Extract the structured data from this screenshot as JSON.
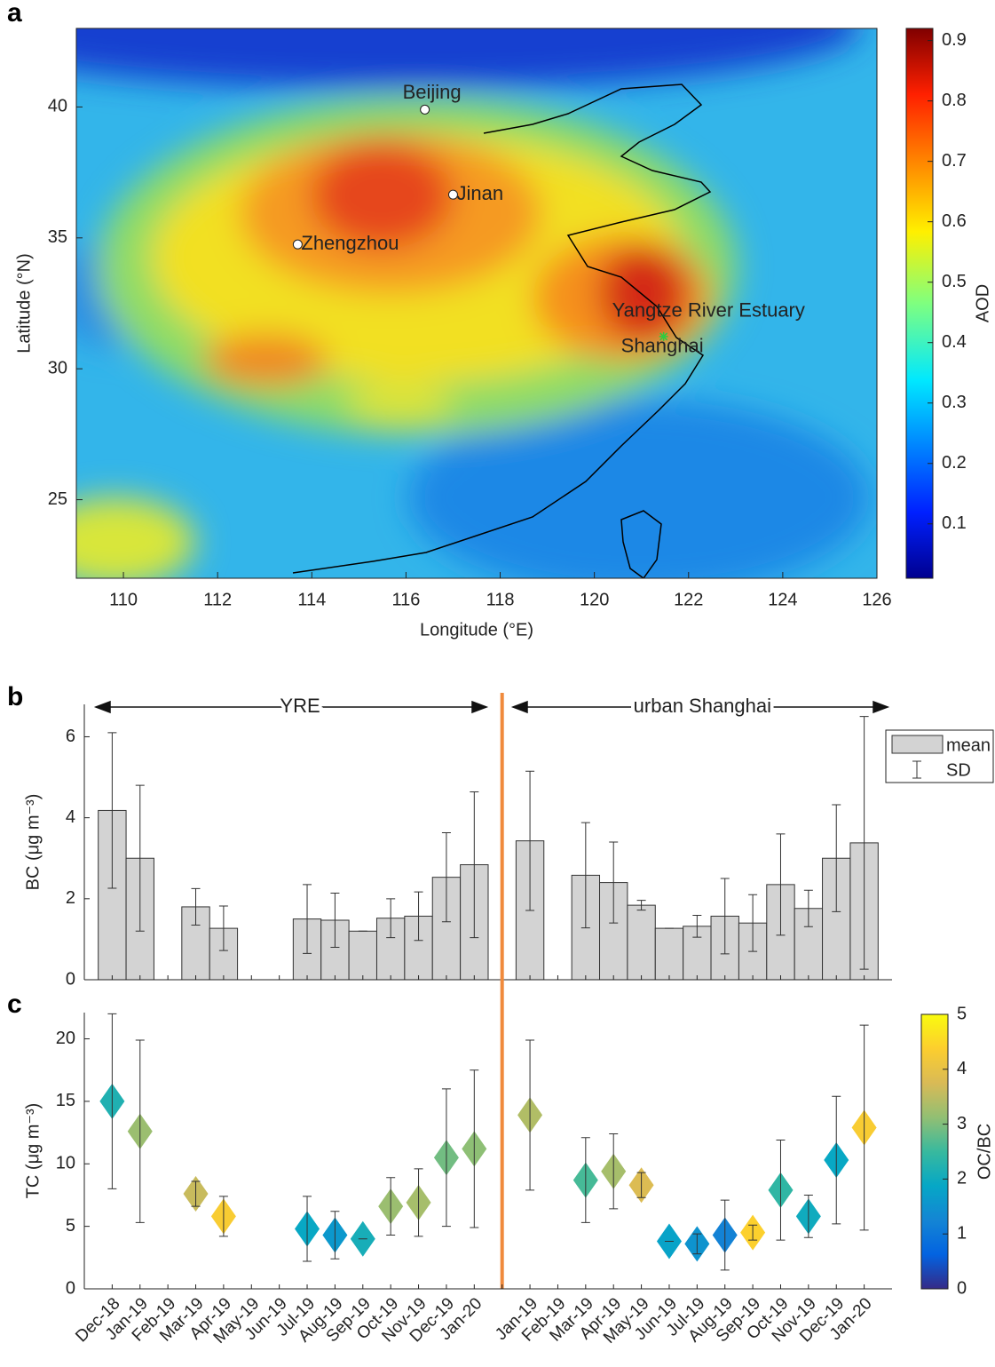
{
  "chart_data": [
    {
      "type": "map",
      "panel_label": "a",
      "xlabel": "Longitude (°E)",
      "ylabel": "Latitude (°N)",
      "xlim": [
        109,
        126
      ],
      "ylim": [
        22,
        43
      ],
      "xticks": [
        110,
        112,
        114,
        116,
        118,
        120,
        122,
        124,
        126
      ],
      "yticks": [
        25,
        30,
        35,
        40
      ],
      "points": [
        {
          "name": "Beijing",
          "x": 116.4,
          "y": 39.9
        },
        {
          "name": "Jinan",
          "x": 117.0,
          "y": 36.65
        },
        {
          "name": "Zhengzhou",
          "x": 113.7,
          "y": 34.75
        },
        {
          "name": "Shanghai",
          "x": 121.47,
          "y": 31.23
        }
      ],
      "annotations": [
        {
          "text": "Yangtze River Estuary"
        }
      ],
      "colorbar": {
        "label": "AOD",
        "lim": [
          0.01,
          0.92
        ],
        "ticks": [
          0.1,
          0.2,
          0.3,
          0.4,
          0.5,
          0.6,
          0.7,
          0.8,
          0.9
        ],
        "colormap": "jet"
      }
    },
    {
      "type": "bar",
      "panel_label": "b",
      "ylabel": "BC (μg m⁻³)",
      "ylim": [
        0,
        6.8
      ],
      "yticks": [
        0,
        2,
        4,
        6
      ],
      "series": [
        {
          "name": "mean",
          "color": "#d3d3d3",
          "values": [
            4.18,
            3.0,
            null,
            1.8,
            1.27,
            null,
            null,
            1.5,
            1.47,
            1.2,
            1.52,
            1.57,
            2.53,
            2.84,
            null,
            3.43,
            null,
            2.58,
            2.4,
            1.84,
            1.27,
            1.32,
            1.57,
            1.4,
            2.35,
            1.76,
            3.0,
            3.38
          ],
          "errors": [
            1.92,
            1.8,
            null,
            0.45,
            0.55,
            null,
            null,
            0.85,
            0.67,
            0,
            0.48,
            0.6,
            1.1,
            1.8,
            null,
            1.72,
            null,
            1.3,
            1.0,
            0.12,
            0,
            0.27,
            0.93,
            0.7,
            1.25,
            0.45,
            1.32,
            3.12
          ]
        }
      ],
      "error_name": "SD",
      "annotations": [
        {
          "text": "YRE"
        },
        {
          "text": "urban Shanghai"
        }
      ],
      "divider_color": "#f08a3c"
    },
    {
      "type": "scatter",
      "panel_label": "c",
      "ylabel": "TC (μg m⁻³)",
      "ylim": [
        0,
        22.1
      ],
      "yticks": [
        0,
        5,
        10,
        15,
        20
      ],
      "categories": [
        "Dec-18",
        "Jan-19",
        "Feb-19",
        "Mar-19",
        "Apr-19",
        "May-19",
        "Jun-19",
        "Jul-19",
        "Aug-19",
        "Sep-19",
        "Oct-19",
        "Nov-19",
        "Dec-19",
        "Jan-20",
        null,
        "Jan-19",
        "Feb-19",
        "Mar-19",
        "Apr-19",
        "May-19",
        "Jun-19",
        "Jul-19",
        "Aug-19",
        "Sep-19",
        "Oct-19",
        "Nov-19",
        "Dec-19",
        "Jan-20"
      ],
      "values": [
        15.0,
        12.6,
        null,
        7.6,
        5.8,
        null,
        null,
        4.8,
        4.3,
        4.0,
        6.6,
        6.9,
        10.5,
        11.2,
        null,
        13.9,
        null,
        8.7,
        9.4,
        8.3,
        3.8,
        3.6,
        4.3,
        4.5,
        7.9,
        5.8,
        10.3,
        12.9
      ],
      "errors": [
        7.0,
        7.3,
        null,
        1.0,
        1.6,
        null,
        null,
        2.6,
        1.9,
        0,
        2.3,
        2.7,
        5.5,
        6.3,
        null,
        6.0,
        null,
        3.4,
        3.0,
        1.0,
        0,
        0.8,
        2.8,
        0.6,
        4.0,
        1.7,
        5.1,
        8.2
      ],
      "color_values": [
        2.2,
        3.2,
        null,
        3.6,
        4.3,
        null,
        null,
        1.9,
        1.6,
        2.1,
        3.2,
        3.3,
        2.9,
        3.1,
        null,
        3.4,
        null,
        2.6,
        3.3,
        3.8,
        1.8,
        1.5,
        1.2,
        4.4,
        2.4,
        2.0,
        1.9,
        4.3
      ],
      "colorbar": {
        "label": "OC/BC",
        "lim": [
          0,
          5
        ],
        "ticks": [
          0,
          1,
          2,
          3,
          4,
          5
        ],
        "colormap": "parula"
      }
    }
  ]
}
